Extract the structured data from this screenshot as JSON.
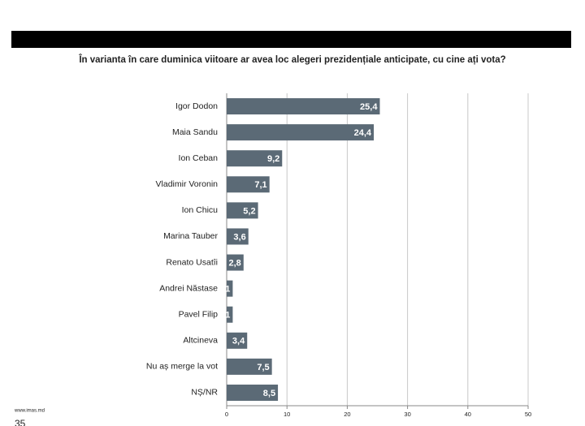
{
  "chart_data": {
    "type": "hbar",
    "title": "În varianta în care duminica viitoare ar avea loc alegeri prezidențiale anticipate, cu cine ați vota?",
    "categories": [
      "Igor Dodon",
      "Maia Sandu",
      "Ion Ceban",
      "Vladimir Voronin",
      "Ion Chicu",
      "Marina Tauber",
      "Renato Usatîi",
      "Andrei Năstase",
      "Pavel Filip",
      "Altcineva",
      "Nu aș merge la vot",
      "NȘ/NR"
    ],
    "values": [
      25.4,
      24.4,
      9.2,
      7.1,
      5.2,
      3.6,
      2.8,
      1,
      1,
      3.4,
      7.5,
      8.5
    ],
    "value_labels": [
      "25,4",
      "24,4",
      "9,2",
      "7,1",
      "5,2",
      "3,6",
      "2,8",
      "1",
      "1",
      "3,4",
      "7,5",
      "8,5"
    ],
    "color": "#5b6a76",
    "xlim": [
      0,
      50
    ],
    "xticks": [
      0,
      10,
      20,
      30,
      40,
      50
    ],
    "grid": true
  },
  "footer": {
    "source": "www.imas.md",
    "page": "35"
  }
}
